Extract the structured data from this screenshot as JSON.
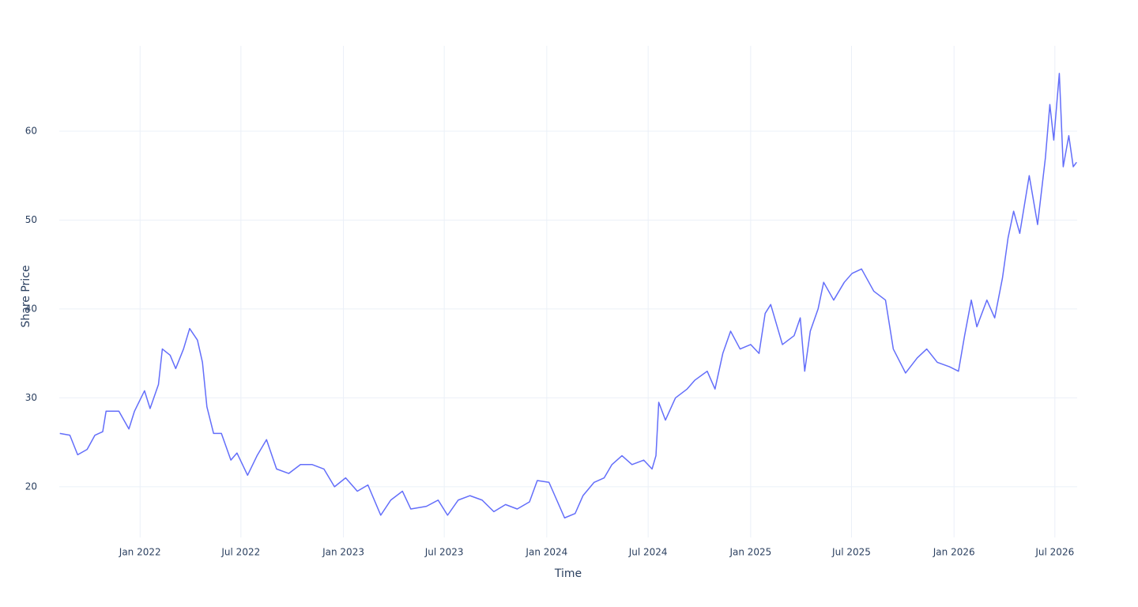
{
  "chart_data": {
    "type": "line",
    "x_title": "Time",
    "y_title": "Share Price",
    "color": "#636efa",
    "grid": true,
    "x": [
      "2021-08-10",
      "2021-08-28",
      "2021-09-11",
      "2021-09-28",
      "2021-10-12",
      "2021-10-26",
      "2021-11-01",
      "2021-11-24",
      "2021-12-12",
      "2021-12-22",
      "2022-01-09",
      "2022-01-19",
      "2022-02-03",
      "2022-02-10",
      "2022-02-24",
      "2022-03-06",
      "2022-03-20",
      "2022-03-31",
      "2022-04-14",
      "2022-04-23",
      "2022-05-01",
      "2022-05-13",
      "2022-05-27",
      "2022-06-13",
      "2022-06-24",
      "2022-07-13",
      "2022-07-30",
      "2022-08-16",
      "2022-09-03",
      "2022-09-25",
      "2022-10-16",
      "2022-11-06",
      "2022-11-27",
      "2022-12-16",
      "2023-01-05",
      "2023-01-26",
      "2023-02-14",
      "2023-03-09",
      "2023-03-27",
      "2023-04-17",
      "2023-05-02",
      "2023-05-30",
      "2023-06-20",
      "2023-07-07",
      "2023-07-26",
      "2023-08-16",
      "2023-09-07",
      "2023-09-28",
      "2023-10-19",
      "2023-11-09",
      "2023-12-01",
      "2023-12-15",
      "2024-01-05",
      "2024-01-19",
      "2024-02-02",
      "2024-02-21",
      "2024-03-06",
      "2024-03-26",
      "2024-04-13",
      "2024-04-27",
      "2024-05-15",
      "2024-06-02",
      "2024-06-23",
      "2024-07-08",
      "2024-07-15",
      "2024-07-20",
      "2024-08-01",
      "2024-08-19",
      "2024-09-09",
      "2024-09-23",
      "2024-10-15",
      "2024-10-29",
      "2024-11-12",
      "2024-11-26",
      "2024-12-13",
      "2025-01-01",
      "2025-01-16",
      "2025-01-27",
      "2025-02-06",
      "2025-02-27",
      "2025-03-20",
      "2025-03-31",
      "2025-04-08",
      "2025-04-18",
      "2025-05-02",
      "2025-05-12",
      "2025-05-30",
      "2025-06-18",
      "2025-07-02",
      "2025-07-19",
      "2025-08-10",
      "2025-08-31",
      "2025-09-14",
      "2025-10-06",
      "2025-10-27",
      "2025-11-13",
      "2025-12-02",
      "2025-12-24",
      "2026-01-09",
      "2026-01-20",
      "2026-02-01",
      "2026-02-11",
      "2026-03-01",
      "2026-03-15",
      "2026-03-29",
      "2026-04-08",
      "2026-04-18",
      "2026-04-29",
      "2026-05-16",
      "2026-05-31",
      "2026-06-14",
      "2026-06-22",
      "2026-06-29",
      "2026-07-09",
      "2026-07-16",
      "2026-07-26",
      "2026-08-03",
      "2026-08-09"
    ],
    "values": [
      26.0,
      25.8,
      23.6,
      24.2,
      25.8,
      26.2,
      28.5,
      28.5,
      26.5,
      28.5,
      30.8,
      28.8,
      31.5,
      35.5,
      34.8,
      33.3,
      35.5,
      37.8,
      36.5,
      34.0,
      29.0,
      26.0,
      26.0,
      23.0,
      23.8,
      21.3,
      23.5,
      25.3,
      22.0,
      21.5,
      22.5,
      22.5,
      22.0,
      20.0,
      21.0,
      19.5,
      20.2,
      16.8,
      18.5,
      19.5,
      17.5,
      17.8,
      18.5,
      16.8,
      18.5,
      19.0,
      18.5,
      17.2,
      18.0,
      17.5,
      18.3,
      20.7,
      20.5,
      18.5,
      16.5,
      17.0,
      19.0,
      20.5,
      21.0,
      22.5,
      23.5,
      22.5,
      23.0,
      22.0,
      23.5,
      29.5,
      27.5,
      30.0,
      31.0,
      32.0,
      33.0,
      31.0,
      35.0,
      37.5,
      35.5,
      36.0,
      35.0,
      39.5,
      40.5,
      36.0,
      37.0,
      39.0,
      33.0,
      37.5,
      40.0,
      43.0,
      41.0,
      43.0,
      44.0,
      44.5,
      42.0,
      41.0,
      35.5,
      32.8,
      34.5,
      35.5,
      34.0,
      33.5,
      33.0,
      37.0,
      41.0,
      38.0,
      41.0,
      39.0,
      43.5,
      48.0,
      51.0,
      48.5,
      55.0,
      49.5,
      57.0,
      63.0,
      59.0,
      66.5,
      56.0,
      59.5,
      56.0,
      56.5
    ],
    "xlim": [
      "2021-08-09",
      "2026-08-10"
    ],
    "xticks": [
      {
        "value": "2022-01-01",
        "label": "Jan 2022"
      },
      {
        "value": "2022-07-01",
        "label": "Jul 2022"
      },
      {
        "value": "2023-01-01",
        "label": "Jan 2023"
      },
      {
        "value": "2023-07-01",
        "label": "Jul 2023"
      },
      {
        "value": "2024-01-01",
        "label": "Jan 2024"
      },
      {
        "value": "2024-07-01",
        "label": "Jul 2024"
      },
      {
        "value": "2025-01-01",
        "label": "Jan 2025"
      },
      {
        "value": "2025-07-01",
        "label": "Jul 2025"
      },
      {
        "value": "2026-01-01",
        "label": "Jan 2026"
      },
      {
        "value": "2026-07-01",
        "label": "Jul 2026"
      }
    ],
    "ylim": [
      14.3,
      69.6
    ],
    "yticks": [
      20,
      30,
      40,
      50,
      60
    ]
  }
}
